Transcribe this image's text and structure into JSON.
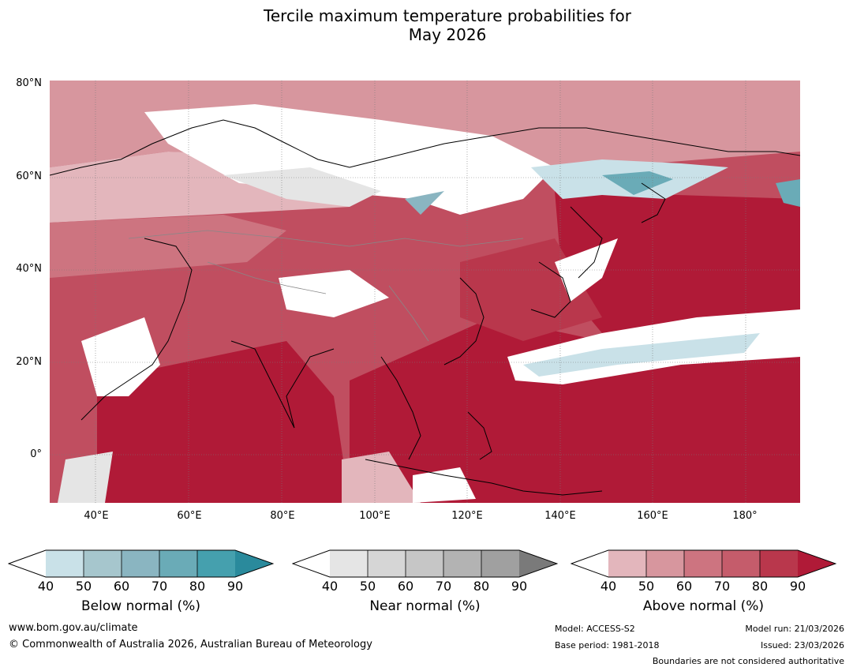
{
  "title": {
    "line1": "Tercile maximum temperature probabilities for",
    "line2": "May 2026"
  },
  "map": {
    "lat_labels": [
      "80°N",
      "60°N",
      "40°N",
      "20°N",
      "0°"
    ],
    "lon_labels": [
      "40°E",
      "60°E",
      "80°E",
      "100°E",
      "120°E",
      "140°E",
      "160°E",
      "180°"
    ],
    "background_color": "#c74a5a"
  },
  "colorbars": [
    {
      "caption": "Below normal (%)",
      "ticks": [
        "40",
        "50",
        "60",
        "70",
        "80",
        "90"
      ],
      "colors": [
        "#ffffff",
        "#c9e1e8",
        "#a6c6cd",
        "#8ab5c1",
        "#6aabb7",
        "#45a0ae",
        "#2a8a9c"
      ]
    },
    {
      "caption": "Near normal (%)",
      "ticks": [
        "40",
        "50",
        "60",
        "70",
        "80",
        "90"
      ],
      "colors": [
        "#ffffff",
        "#e5e5e5",
        "#d6d6d6",
        "#c6c6c6",
        "#b3b3b3",
        "#a0a0a0",
        "#7a7a7a"
      ]
    },
    {
      "caption": "Above normal (%)",
      "ticks": [
        "40",
        "50",
        "60",
        "70",
        "80",
        "90"
      ],
      "colors": [
        "#ffffff",
        "#e3b6bc",
        "#d7969e",
        "#cd7480",
        "#c55c6b",
        "#b9374c",
        "#b01a37"
      ]
    }
  ],
  "footer": {
    "website": "www.bom.gov.au/climate",
    "copyright": "© Commonwealth of Australia 2026, Australian Bureau of Meteorology",
    "model": "Model: ACCESS-S2",
    "base_period": "Base period: 1981-2018",
    "model_run": "Model run: 21/03/2026",
    "issued": "Issued: 23/03/2026",
    "boundaries_note": "Boundaries are not considered authoritative"
  }
}
